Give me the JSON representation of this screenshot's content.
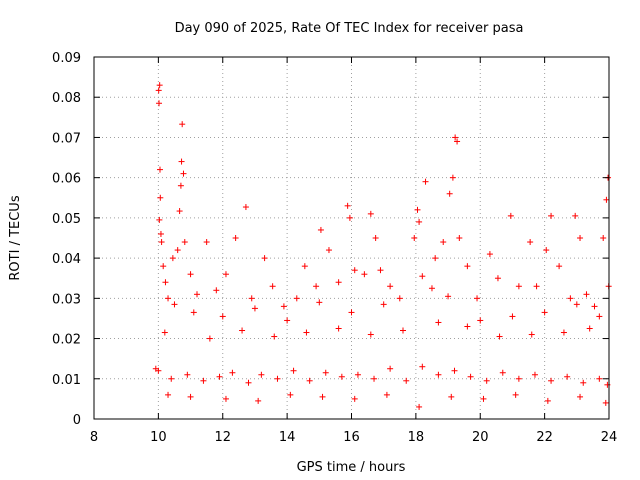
{
  "chart_data": {
    "type": "scatter",
    "title": "Day 090 of 2025, Rate Of TEC Index for receiver pasa",
    "xlabel": "GPS time / hours",
    "ylabel": "ROTI / TECUs",
    "xlim": [
      8,
      24
    ],
    "ylim": [
      0,
      0.09
    ],
    "x_ticks": [
      8,
      10,
      12,
      14,
      16,
      18,
      20,
      22,
      24
    ],
    "y_ticks": [
      0,
      0.01,
      0.02,
      0.03,
      0.04,
      0.05,
      0.06,
      0.07,
      0.08,
      0.09
    ],
    "x_tick_labels": [
      "8",
      "10",
      "12",
      "14",
      "16",
      "18",
      "20",
      "22",
      "24"
    ],
    "y_tick_labels": [
      "0",
      "0.01",
      "0.02",
      "0.03",
      "0.04",
      "0.05",
      "0.06",
      "0.07",
      "0.08",
      "0.09"
    ],
    "grid": true,
    "marker": "+",
    "color": "#ff0000",
    "series": [
      {
        "name": "",
        "points": [
          [
            9.92,
            0.0125
          ],
          [
            10.01,
            0.0817
          ],
          [
            10.02,
            0.0785
          ],
          [
            10.04,
            0.083
          ],
          [
            10.05,
            0.062
          ],
          [
            10.06,
            0.055
          ],
          [
            10.03,
            0.0495
          ],
          [
            10.08,
            0.046
          ],
          [
            10.1,
            0.044
          ],
          [
            10.15,
            0.038
          ],
          [
            10.22,
            0.034
          ],
          [
            10.3,
            0.03
          ],
          [
            10.45,
            0.04
          ],
          [
            10.6,
            0.042
          ],
          [
            10.66,
            0.0517
          ],
          [
            10.7,
            0.058
          ],
          [
            10.72,
            0.064
          ],
          [
            10.74,
            0.0733
          ],
          [
            10.78,
            0.061
          ],
          [
            10.82,
            0.044
          ],
          [
            11.0,
            0.036
          ],
          [
            11.2,
            0.031
          ],
          [
            11.5,
            0.044
          ],
          [
            11.8,
            0.032
          ],
          [
            12.1,
            0.036
          ],
          [
            12.4,
            0.045
          ],
          [
            12.72,
            0.0527
          ],
          [
            12.9,
            0.03
          ],
          [
            13.3,
            0.04
          ],
          [
            13.55,
            0.033
          ],
          [
            13.9,
            0.028
          ],
          [
            14.3,
            0.03
          ],
          [
            14.55,
            0.038
          ],
          [
            14.9,
            0.033
          ],
          [
            15.05,
            0.047
          ],
          [
            15.3,
            0.042
          ],
          [
            15.6,
            0.034
          ],
          [
            15.88,
            0.053
          ],
          [
            15.95,
            0.05
          ],
          [
            16.1,
            0.037
          ],
          [
            16.4,
            0.036
          ],
          [
            16.6,
            0.051
          ],
          [
            16.75,
            0.045
          ],
          [
            16.9,
            0.037
          ],
          [
            17.2,
            0.033
          ],
          [
            17.5,
            0.03
          ],
          [
            17.95,
            0.045
          ],
          [
            18.05,
            0.052
          ],
          [
            18.1,
            0.049
          ],
          [
            18.3,
            0.059
          ],
          [
            18.6,
            0.04
          ],
          [
            18.85,
            0.044
          ],
          [
            19.05,
            0.056
          ],
          [
            19.15,
            0.06
          ],
          [
            19.22,
            0.07
          ],
          [
            19.28,
            0.069
          ],
          [
            19.35,
            0.045
          ],
          [
            19.6,
            0.038
          ],
          [
            19.9,
            0.03
          ],
          [
            20.3,
            0.041
          ],
          [
            20.55,
            0.035
          ],
          [
            20.95,
            0.0505
          ],
          [
            21.2,
            0.033
          ],
          [
            21.55,
            0.044
          ],
          [
            21.75,
            0.033
          ],
          [
            22.05,
            0.042
          ],
          [
            22.2,
            0.0505
          ],
          [
            22.45,
            0.038
          ],
          [
            22.8,
            0.03
          ],
          [
            22.95,
            0.0505
          ],
          [
            23.1,
            0.045
          ],
          [
            23.3,
            0.031
          ],
          [
            23.55,
            0.028
          ],
          [
            23.82,
            0.045
          ],
          [
            23.92,
            0.0545
          ],
          [
            23.97,
            0.06
          ],
          [
            23.99,
            0.033
          ],
          [
            10.5,
            0.0285
          ],
          [
            11.1,
            0.0265
          ],
          [
            12.0,
            0.0255
          ],
          [
            13.0,
            0.0275
          ],
          [
            14.0,
            0.0245
          ],
          [
            15.0,
            0.029
          ],
          [
            16.0,
            0.0265
          ],
          [
            17.0,
            0.0285
          ],
          [
            18.2,
            0.0355
          ],
          [
            18.5,
            0.0325
          ],
          [
            19.0,
            0.0305
          ],
          [
            20.0,
            0.0245
          ],
          [
            21.0,
            0.0255
          ],
          [
            22.0,
            0.0265
          ],
          [
            23.0,
            0.0285
          ],
          [
            23.7,
            0.0255
          ],
          [
            10.2,
            0.0215
          ],
          [
            11.6,
            0.02
          ],
          [
            12.6,
            0.022
          ],
          [
            13.6,
            0.0205
          ],
          [
            14.6,
            0.0215
          ],
          [
            15.6,
            0.0225
          ],
          [
            16.6,
            0.021
          ],
          [
            17.6,
            0.022
          ],
          [
            18.7,
            0.024
          ],
          [
            19.6,
            0.023
          ],
          [
            20.6,
            0.0205
          ],
          [
            21.6,
            0.021
          ],
          [
            22.6,
            0.0215
          ],
          [
            23.4,
            0.0225
          ],
          [
            10.0,
            0.012
          ],
          [
            10.4,
            0.01
          ],
          [
            10.9,
            0.011
          ],
          [
            11.4,
            0.0095
          ],
          [
            11.9,
            0.0105
          ],
          [
            12.3,
            0.0115
          ],
          [
            12.8,
            0.009
          ],
          [
            13.2,
            0.011
          ],
          [
            13.7,
            0.01
          ],
          [
            14.2,
            0.012
          ],
          [
            14.7,
            0.0095
          ],
          [
            15.2,
            0.0115
          ],
          [
            15.7,
            0.0105
          ],
          [
            16.2,
            0.011
          ],
          [
            16.7,
            0.01
          ],
          [
            17.2,
            0.0125
          ],
          [
            17.7,
            0.0095
          ],
          [
            18.2,
            0.013
          ],
          [
            18.7,
            0.011
          ],
          [
            19.2,
            0.012
          ],
          [
            19.7,
            0.0105
          ],
          [
            20.2,
            0.0095
          ],
          [
            20.7,
            0.0115
          ],
          [
            21.2,
            0.01
          ],
          [
            21.7,
            0.011
          ],
          [
            22.2,
            0.0095
          ],
          [
            22.7,
            0.0105
          ],
          [
            23.2,
            0.009
          ],
          [
            23.7,
            0.01
          ],
          [
            23.95,
            0.0085
          ],
          [
            10.3,
            0.006
          ],
          [
            11.0,
            0.0055
          ],
          [
            12.1,
            0.005
          ],
          [
            13.1,
            0.0045
          ],
          [
            14.1,
            0.006
          ],
          [
            15.1,
            0.0055
          ],
          [
            16.1,
            0.005
          ],
          [
            17.1,
            0.006
          ],
          [
            18.1,
            0.003
          ],
          [
            19.1,
            0.0055
          ],
          [
            20.1,
            0.005
          ],
          [
            21.1,
            0.006
          ],
          [
            22.1,
            0.0045
          ],
          [
            23.1,
            0.0055
          ],
          [
            23.9,
            0.004
          ]
        ]
      }
    ]
  }
}
